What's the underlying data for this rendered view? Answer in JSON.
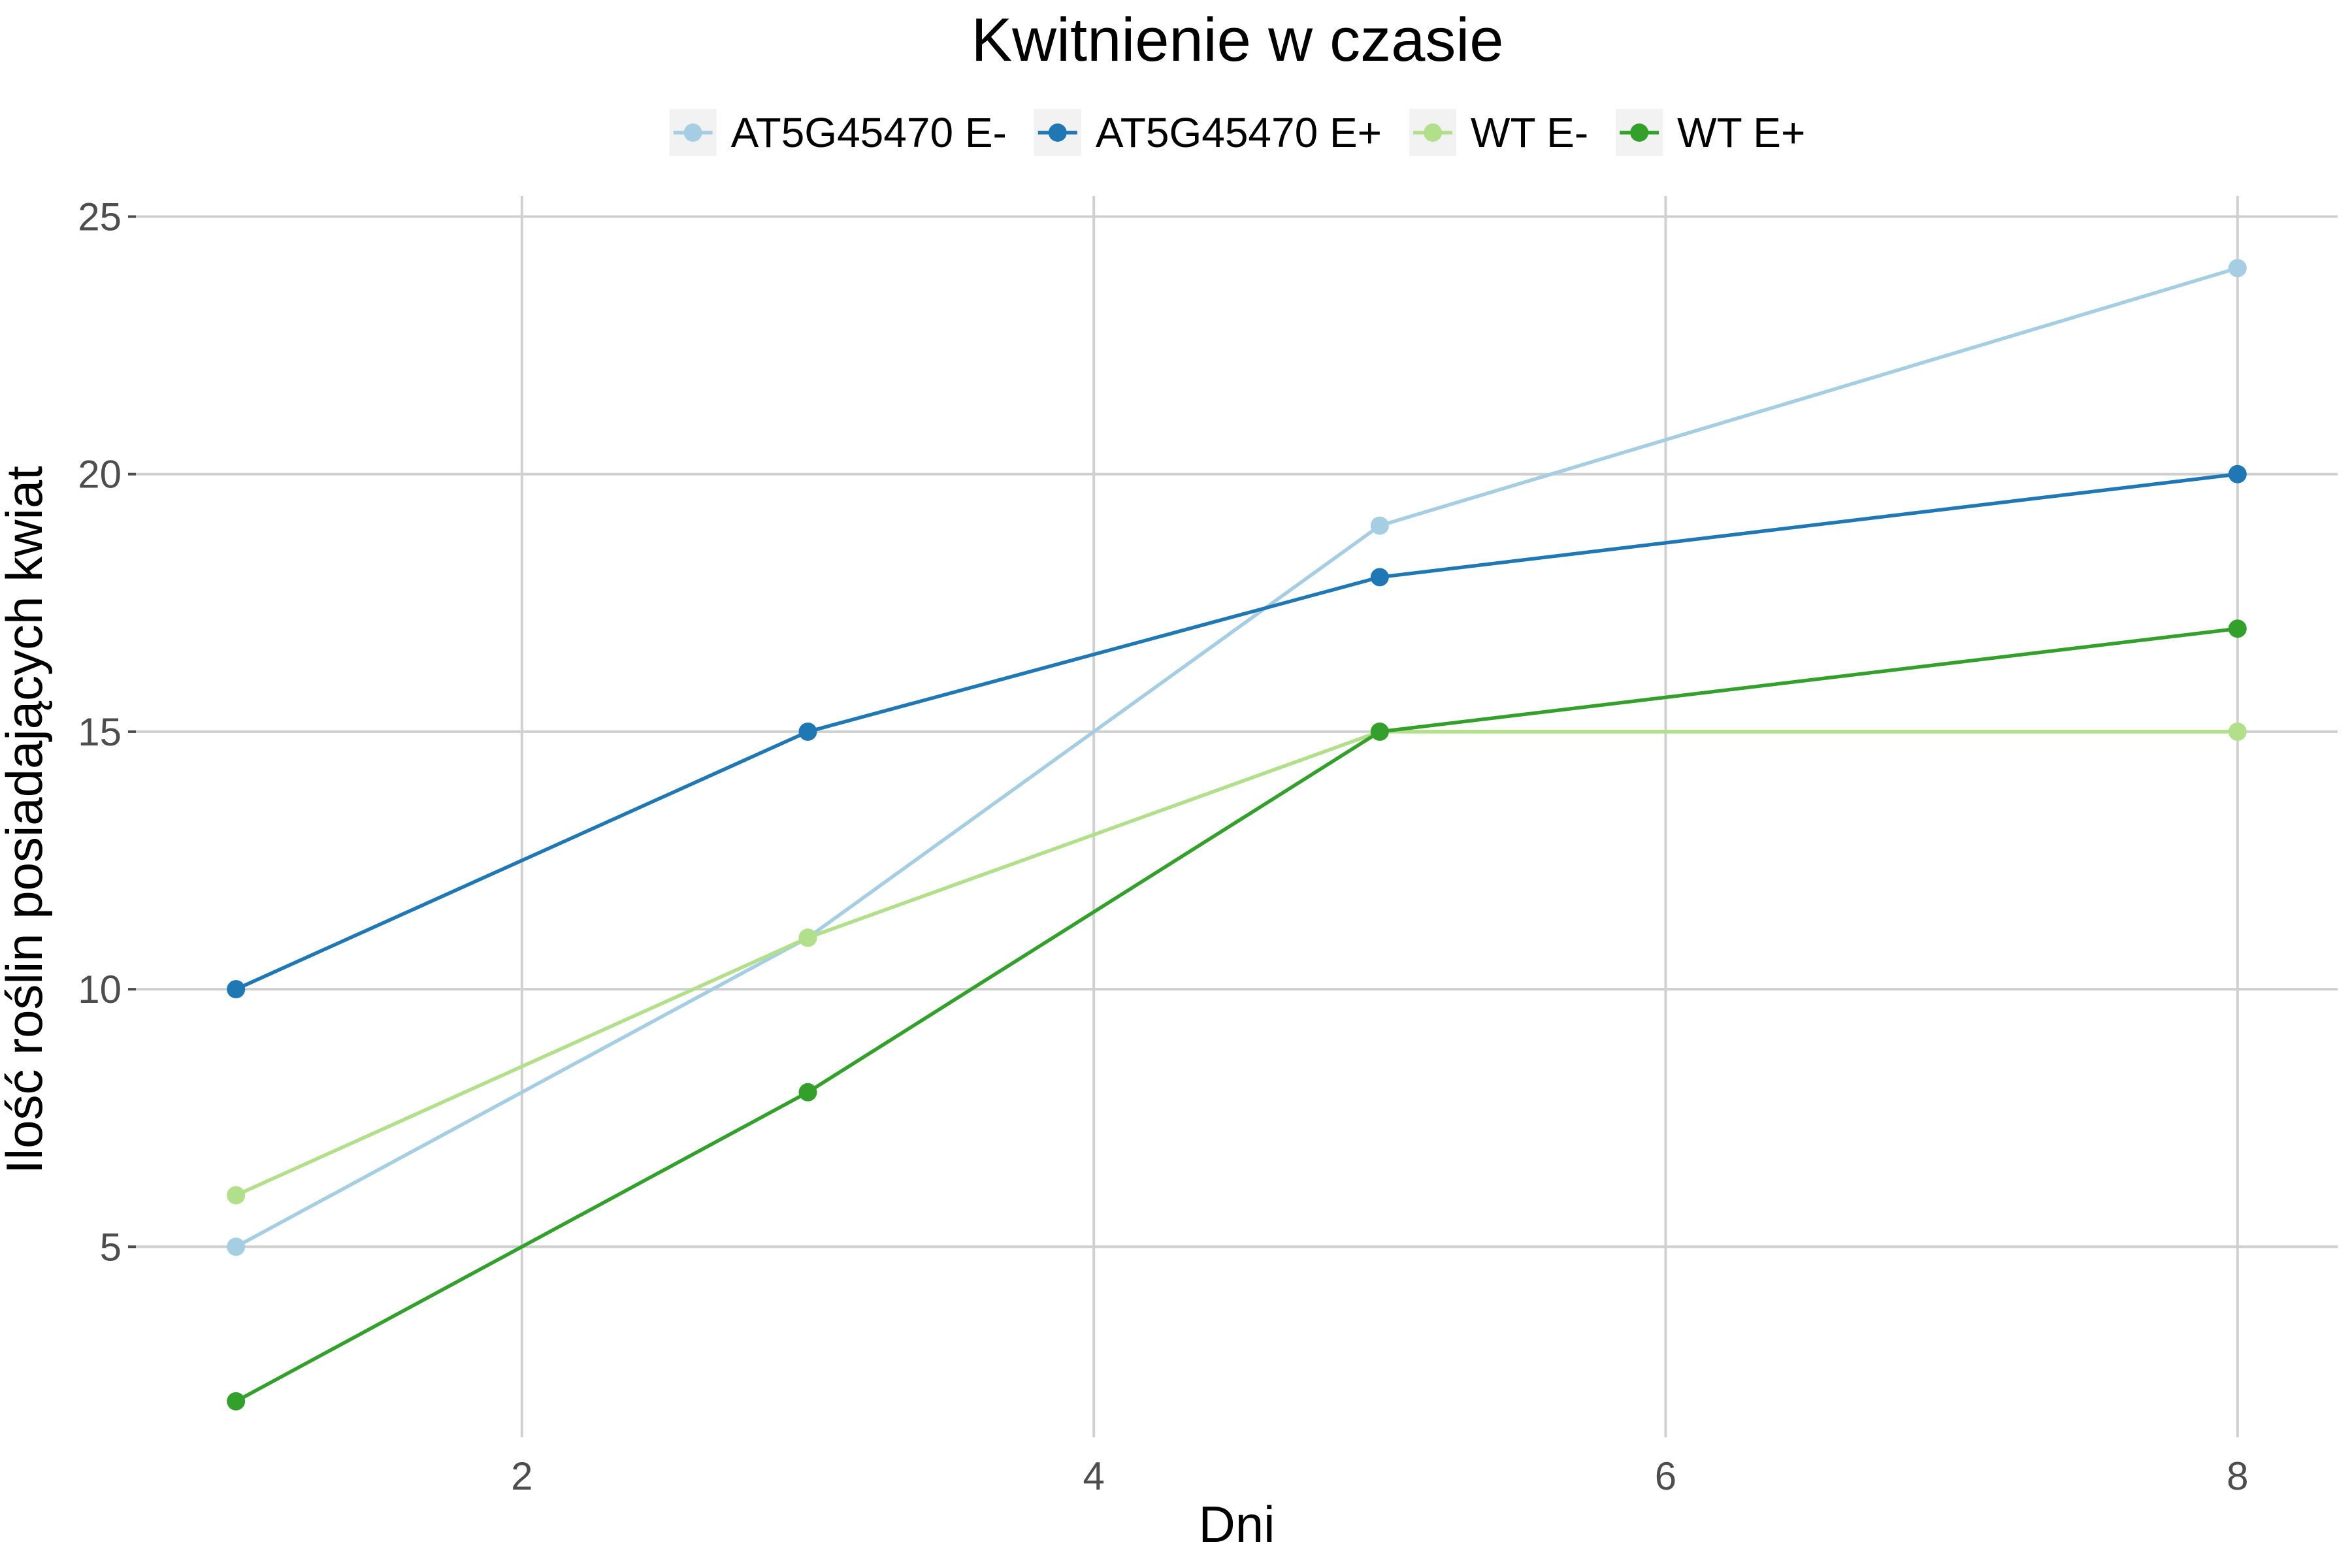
{
  "chart_data": {
    "type": "line",
    "title": "Kwitnienie w czasie",
    "xlabel": "Dni",
    "ylabel": "Ilość roślin posiadających kwiat",
    "xlim": [
      0.65,
      8.35
    ],
    "ylim": [
      1.3,
      25.4
    ],
    "x_ticks": [
      2,
      4,
      6,
      8
    ],
    "y_ticks": [
      5,
      10,
      15,
      20,
      25
    ],
    "grid": true,
    "legend_position": "top",
    "series": [
      {
        "name": "AT5G45470 E-",
        "color": "#a6cee3",
        "x": [
          1,
          3,
          5,
          8
        ],
        "values": [
          5,
          11,
          19,
          24
        ]
      },
      {
        "name": "AT5G45470 E+",
        "color": "#1f78b4",
        "x": [
          1,
          3,
          5,
          8
        ],
        "values": [
          10,
          15,
          18,
          20
        ]
      },
      {
        "name": "WT E-",
        "color": "#b2df8a",
        "x": [
          1,
          3,
          5,
          8
        ],
        "values": [
          6,
          11,
          15,
          15
        ]
      },
      {
        "name": "WT E+",
        "color": "#33a02c",
        "x": [
          1,
          3,
          5,
          8
        ],
        "values": [
          2,
          8,
          15,
          17
        ]
      }
    ]
  }
}
